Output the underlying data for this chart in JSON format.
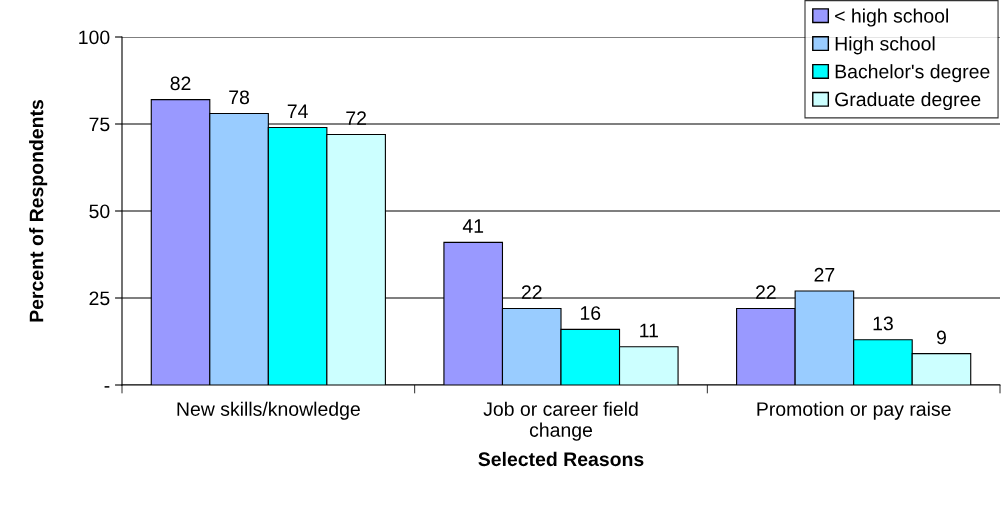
{
  "chart_data": {
    "type": "bar",
    "xlabel": "Selected Reasons",
    "ylabel": "Percent of Respondents",
    "categories": [
      "New skills/knowledge",
      "Job or career field\nchange",
      "Promotion or pay raise"
    ],
    "series": [
      {
        "name": "< high school",
        "color": "#9999ff",
        "values": [
          82,
          41,
          22
        ]
      },
      {
        "name": "High school",
        "color": "#99ccff",
        "values": [
          78,
          22,
          27
        ]
      },
      {
        "name": "Bachelor's degree",
        "color": "#00ffff",
        "values": [
          74,
          16,
          13
        ]
      },
      {
        "name": "Graduate degree",
        "color": "#ccffff",
        "values": [
          72,
          11,
          9
        ]
      }
    ],
    "ylim": [
      0,
      100
    ],
    "yticks": [
      {
        "value": 0,
        "label": "-"
      },
      25,
      50,
      75,
      100
    ],
    "grid": "y",
    "legend": "top right",
    "data_labels": true
  }
}
